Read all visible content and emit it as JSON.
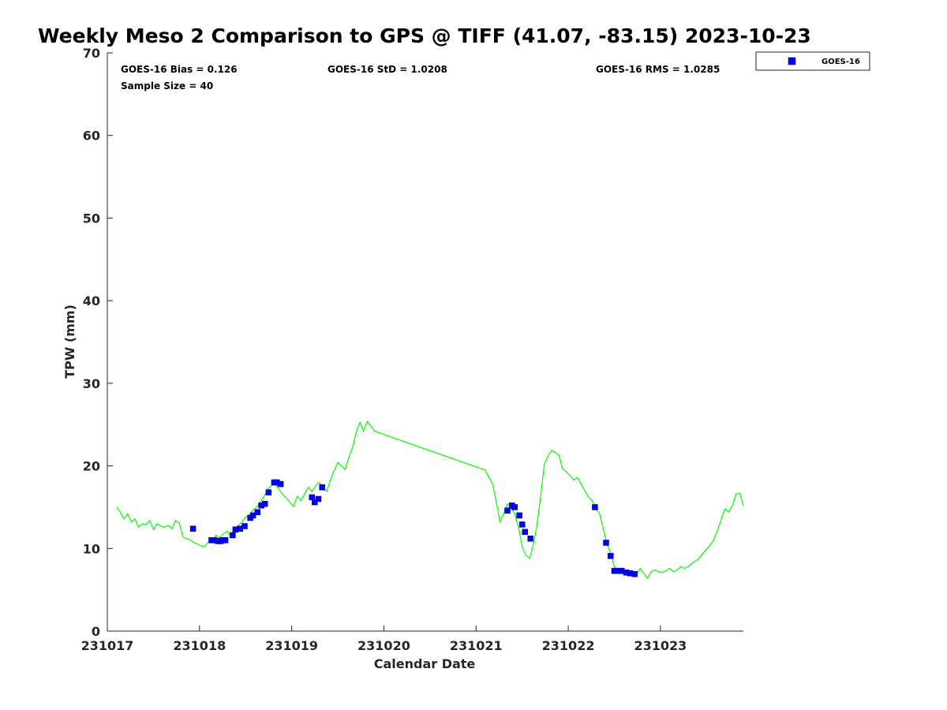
{
  "chart_data": {
    "type": "line",
    "title": "Weekly Meso 2 Comparison to GPS @ TIFF (41.07, -83.15) 2023-10-23",
    "xlabel": "Calendar Date",
    "ylabel": "TPW (mm)",
    "xlim": [
      231017.0,
      231023.9
    ],
    "ylim": [
      0,
      70
    ],
    "xticks": [
      231017,
      231018,
      231019,
      231020,
      231021,
      231022,
      231023
    ],
    "xtick_labels": [
      "231017",
      "231018",
      "231019",
      "231020",
      "231021",
      "231022",
      "231023"
    ],
    "yticks": [
      0,
      10,
      20,
      30,
      40,
      50,
      60,
      70
    ],
    "ytick_labels": [
      "0",
      "10",
      "20",
      "30",
      "40",
      "50",
      "60",
      "70"
    ],
    "grid": false,
    "legend_position": "top-right outside",
    "stats": {
      "bias": "GOES-16 Bias = 0.126",
      "std": "GOES-16 StD = 1.0208",
      "rms": "GOES-16 RMS = 1.0285",
      "sample_size": "Sample Size = 40"
    },
    "line_series": {
      "name": "",
      "color": "#00ff00",
      "x": [
        231017.1,
        231017.14,
        231017.18,
        231017.22,
        231017.26,
        231017.3,
        231017.34,
        231017.38,
        231017.42,
        231017.46,
        231017.5,
        231017.54,
        231017.58,
        231017.62,
        231017.66,
        231017.7,
        231017.74,
        231017.78,
        231017.82,
        231017.86,
        231017.89,
        231017.93,
        231018.0,
        231018.05,
        231018.1,
        231018.14,
        231018.18,
        231018.22,
        231018.26,
        231018.3,
        231018.34,
        231018.38,
        231018.42,
        231018.46,
        231018.5,
        231018.54,
        231018.58,
        231018.62,
        231018.66,
        231018.7,
        231018.74,
        231018.78,
        231018.82,
        231018.86,
        231018.9,
        231018.94,
        231018.98,
        231019.02,
        231019.06,
        231019.1,
        231019.14,
        231019.18,
        231019.22,
        231019.26,
        231019.3,
        231019.34,
        231019.38,
        231019.42,
        231019.46,
        231019.5,
        231019.54,
        231019.58,
        231019.62,
        231019.66,
        231019.7,
        231019.74,
        231019.78,
        231019.82,
        231019.86,
        231019.9,
        231019.95,
        231021.1,
        231021.14,
        231021.18,
        231021.22,
        231021.26,
        231021.3,
        231021.34,
        231021.38,
        231021.42,
        231021.46,
        231021.5,
        231021.54,
        231021.58,
        231021.62,
        231021.66,
        231021.7,
        231021.74,
        231021.78,
        231021.82,
        231021.86,
        231021.9,
        231021.94,
        231021.98,
        231022.02,
        231022.06,
        231022.1,
        231022.14,
        231022.18,
        231022.22,
        231022.26,
        231022.3,
        231022.34,
        231022.38,
        231022.42,
        231022.46,
        231022.5,
        231022.54,
        231022.58,
        231022.62,
        231022.66,
        231022.7,
        231022.74,
        231022.78,
        231022.82,
        231022.86,
        231022.9,
        231022.94,
        231022.98,
        231023.02,
        231023.06,
        231023.1,
        231023.14,
        231023.18,
        231023.22,
        231023.26,
        231023.3,
        231023.34,
        231023.38,
        231023.42,
        231023.46,
        231023.5,
        231023.54,
        231023.58,
        231023.62,
        231023.66,
        231023.7,
        231023.74,
        231023.78,
        231023.82,
        231023.86,
        231023.9
      ],
      "y": [
        15.0,
        14.4,
        13.6,
        14.2,
        13.2,
        13.6,
        12.6,
        13.0,
        12.9,
        13.4,
        12.3,
        13.0,
        12.7,
        12.6,
        12.8,
        12.4,
        13.4,
        13.1,
        11.4,
        11.2,
        11.1,
        10.8,
        10.4,
        10.2,
        10.8,
        11.0,
        11.6,
        11.3,
        11.8,
        12.1,
        11.4,
        12.3,
        12.8,
        13.2,
        13.8,
        14.1,
        14.6,
        15.0,
        15.6,
        16.3,
        17.2,
        17.6,
        17.8,
        17.2,
        16.6,
        16.1,
        15.6,
        15.1,
        16.3,
        15.8,
        16.6,
        17.4,
        16.9,
        17.6,
        18.0,
        17.4,
        16.9,
        18.3,
        19.4,
        20.4,
        20.0,
        19.6,
        21.0,
        22.2,
        24.1,
        25.3,
        24.2,
        25.4,
        24.8,
        24.2,
        24.0,
        19.5,
        18.6,
        17.8,
        15.6,
        13.2,
        14.2,
        15.4,
        14.8,
        14.2,
        12.6,
        10.2,
        9.2,
        8.8,
        10.4,
        12.8,
        16.2,
        20.2,
        21.2,
        21.9,
        21.6,
        21.3,
        19.6,
        19.3,
        18.8,
        18.3,
        18.6,
        17.8,
        17.0,
        16.2,
        15.8,
        14.8,
        14.2,
        12.4,
        10.6,
        9.4,
        7.8,
        7.2,
        7.0,
        6.9,
        6.9,
        7.3,
        6.8,
        7.6,
        7.0,
        6.4,
        7.2,
        7.4,
        7.2,
        7.1,
        7.3,
        7.6,
        7.2,
        7.4,
        7.8,
        7.6,
        7.8,
        8.2,
        8.5,
        8.8,
        9.4,
        9.9,
        10.4,
        11.1,
        12.2,
        13.6,
        14.8,
        14.4,
        15.2,
        16.6,
        16.7,
        15.2
      ]
    },
    "series": [
      {
        "name": "GOES-16",
        "type": "scatter",
        "marker": "square",
        "color": "#0000ff",
        "x": [
          231017.93,
          231018.13,
          231018.16,
          231018.2,
          231018.23,
          231018.25,
          231018.28,
          231018.36,
          231018.39,
          231018.44,
          231018.49,
          231018.55,
          231018.58,
          231018.63,
          231018.67,
          231018.71,
          231018.75,
          231018.81,
          231018.84,
          231018.88,
          231019.22,
          231019.25,
          231019.29,
          231019.33,
          231021.34,
          231021.39,
          231021.42,
          231021.47,
          231021.5,
          231021.53,
          231021.59,
          231022.29,
          231022.41,
          231022.46,
          231022.5,
          231022.54,
          231022.58,
          231022.63,
          231022.67,
          231022.72
        ],
        "y": [
          12.4,
          11.0,
          11.0,
          10.9,
          10.9,
          11.0,
          11.0,
          11.6,
          12.3,
          12.4,
          12.7,
          13.7,
          14.0,
          14.4,
          15.2,
          15.4,
          16.8,
          18.0,
          18.0,
          17.8,
          16.2,
          15.6,
          16.0,
          17.4,
          14.6,
          15.2,
          15.0,
          14.0,
          12.9,
          12.0,
          11.2,
          15.0,
          10.7,
          9.1,
          7.3,
          7.3,
          7.3,
          7.1,
          7.0,
          6.9
        ]
      }
    ]
  }
}
